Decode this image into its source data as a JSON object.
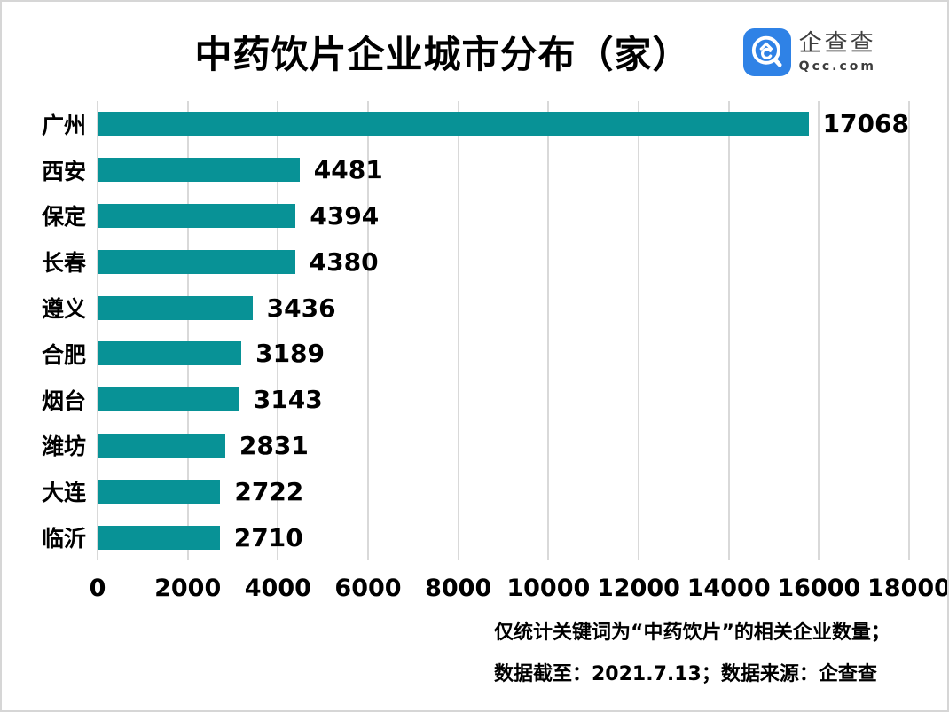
{
  "header": {
    "title": "中药饮片企业城市分布（家）",
    "logo": {
      "name": "企查查",
      "domain": "Qcc.com",
      "brand_color": "#2F82E6",
      "text_color": "#3d3d3d"
    }
  },
  "chart_data": {
    "type": "bar",
    "orientation": "horizontal",
    "title": "中药饮片企业城市分布（家）",
    "categories": [
      "广州",
      "西安",
      "保定",
      "长春",
      "遵义",
      "合肥",
      "烟台",
      "潍坊",
      "大连",
      "临沂"
    ],
    "values": [
      17068,
      4481,
      4394,
      4380,
      3436,
      3189,
      3143,
      2831,
      2722,
      2710
    ],
    "xlabel": "",
    "ylabel": "",
    "xlim": [
      0,
      18000
    ],
    "x_ticks": [
      0,
      2000,
      4000,
      6000,
      8000,
      10000,
      12000,
      14000,
      16000,
      18000
    ],
    "grid": "vertical",
    "gridline_color": "#d9d9d9",
    "bar_color": "#089296",
    "value_labels": true,
    "legend": "none"
  },
  "footer": {
    "line1": "仅统计关键词为“中药饮片”的相关企业数量；",
    "line2": "数据截至：2021.7.13；数据来源：企查查"
  }
}
